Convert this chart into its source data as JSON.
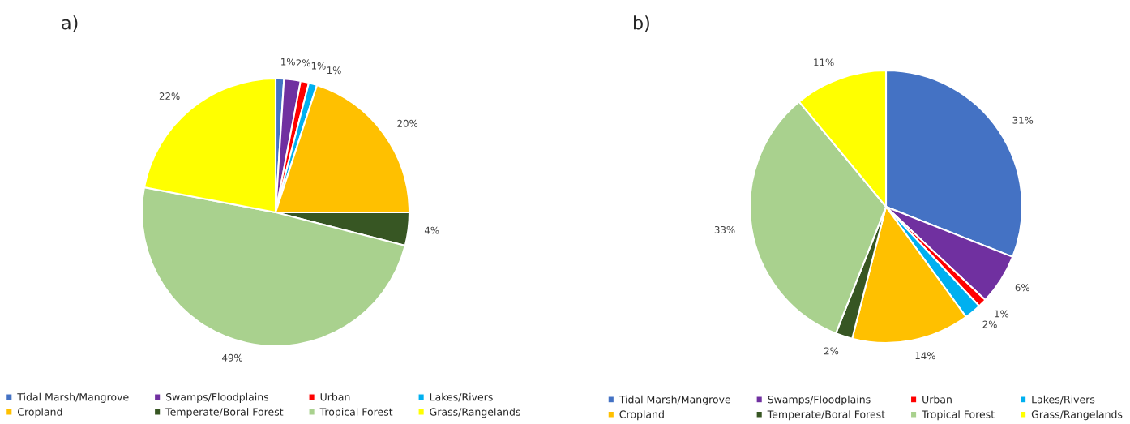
{
  "chart_data": [
    {
      "type": "pie",
      "title": "a)",
      "categories": [
        "Tidal Marsh/Mangrove",
        "Swamps/Floodplains",
        "Urban",
        "Lakes/Rivers",
        "Cropland",
        "Temperate/Boral Forest",
        "Tropical Forest",
        "Grass/Rangelands"
      ],
      "values": [
        1,
        2,
        1,
        1,
        20,
        4,
        49,
        22
      ],
      "value_labels": [
        "1%",
        "2%",
        "1%",
        "1%",
        "20%",
        "4%",
        "49%",
        "22%"
      ],
      "colors": [
        "#4472c4",
        "#7030a0",
        "#ff0000",
        "#00b0f0",
        "#ffc000",
        "#375623",
        "#a9d18e",
        "#ffff00"
      ],
      "legend": "bottom"
    },
    {
      "type": "pie",
      "title": "b)",
      "categories": [
        "Tidal Marsh/Mangrove",
        "Swamps/Floodplains",
        "Urban",
        "Lakes/Rivers",
        "Cropland",
        "Temperate/Boral Forest",
        "Tropical Forest",
        "Grass/Rangelands"
      ],
      "values": [
        31,
        6,
        1,
        2,
        14,
        2,
        33,
        11
      ],
      "value_labels": [
        "31%",
        "6%",
        "1%",
        "2%",
        "14%",
        "2%",
        "33%",
        "11%"
      ],
      "colors": [
        "#4472c4",
        "#7030a0",
        "#ff0000",
        "#00b0f0",
        "#ffc000",
        "#375623",
        "#a9d18e",
        "#ffff00"
      ],
      "legend": "bottom"
    }
  ]
}
